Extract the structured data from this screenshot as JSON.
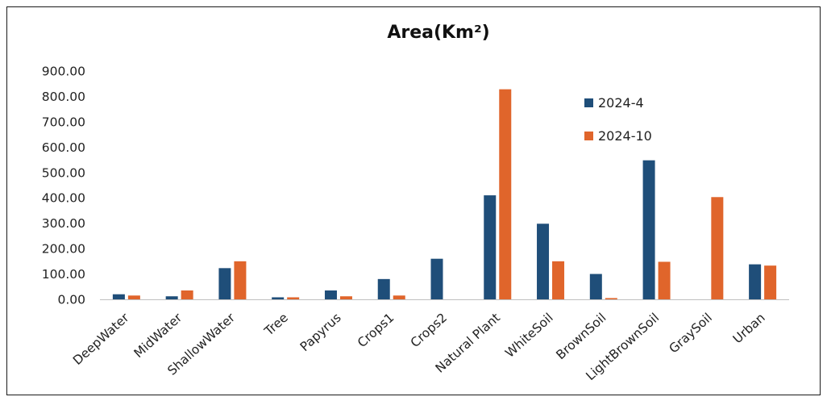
{
  "chart_data": {
    "type": "bar",
    "title": "Area(Km²)",
    "xlabel": "",
    "ylabel": "",
    "ylim": [
      0,
      900
    ],
    "y_ticks": [
      "0.00",
      "100.00",
      "200.00",
      "300.00",
      "400.00",
      "500.00",
      "600.00",
      "700.00",
      "800.00",
      "900.00"
    ],
    "grid": false,
    "legend_position": "top-right",
    "categories": [
      "DeepWater",
      "MidWater",
      "ShallowWater",
      "Tree",
      "Papyrus",
      "Crops1",
      "Crops2",
      "Natural Plant",
      "WhiteSoil",
      "BrownSoil",
      "LightBrownSoil",
      "GraySoil",
      "Urban"
    ],
    "series": [
      {
        "name": "2024-4",
        "color": "#1f4e79",
        "values": [
          20,
          12,
          123,
          8,
          35,
          80,
          160,
          410,
          298,
          100,
          548,
          0,
          138
        ]
      },
      {
        "name": "2024-10",
        "color": "#e0652b",
        "values": [
          15,
          35,
          150,
          8,
          12,
          15,
          0,
          828,
          150,
          5,
          148,
          403,
          133
        ]
      }
    ]
  }
}
